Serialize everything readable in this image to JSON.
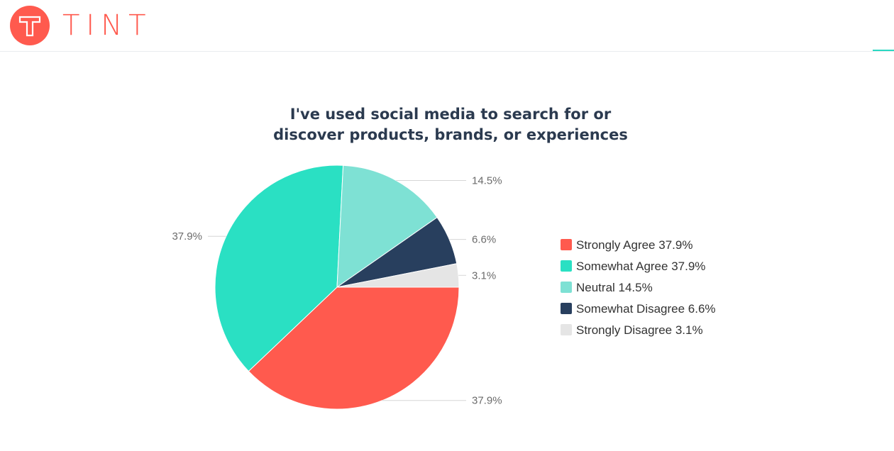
{
  "header": {
    "logo_text": "TINT",
    "brand_color": "#ff5a4e"
  },
  "chart_data": {
    "type": "pie",
    "title_lines": [
      "I've used social media to search for or",
      "discover products, brands, or experiences"
    ],
    "legend_position": "right",
    "slices": [
      {
        "name": "Strongly Agree",
        "value": 37.9,
        "label": "37.9%",
        "legend": "Strongly Agree 37.9%",
        "color": "#ff5a4e"
      },
      {
        "name": "Somewhat Agree",
        "value": 37.9,
        "label": "37.9%",
        "legend": "Somewhat Agree 37.9%",
        "color": "#2ae0c3"
      },
      {
        "name": "Neutral",
        "value": 14.5,
        "label": "14.5%",
        "legend": "Neutral 14.5%",
        "color": "#7ee1d4"
      },
      {
        "name": "Somewhat Disagree",
        "value": 6.6,
        "label": "6.6%",
        "legend": "Somewhat Disagree 6.6%",
        "color": "#283f5e"
      },
      {
        "name": "Strongly Disagree",
        "value": 3.1,
        "label": "3.1%",
        "legend": "Strongly Disagree 3.1%",
        "color": "#e5e5e5"
      }
    ]
  }
}
